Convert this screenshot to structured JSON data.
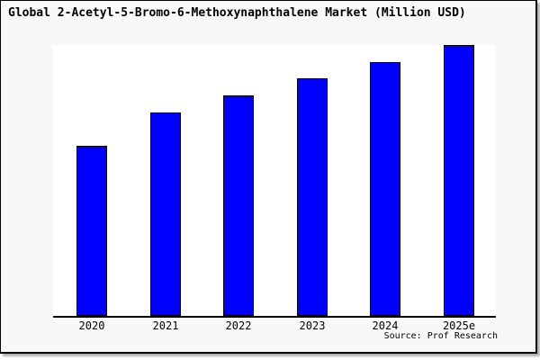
{
  "source": "Source: Prof Research",
  "colors": {
    "bar_fill": "#0000ff",
    "bar_border": "#000000",
    "frame_background": "#f8f8f8",
    "plot_background": "#ffffff",
    "axis": "#000000",
    "text": "#000000",
    "shadow": "#b3b3b3"
  },
  "chart_data": {
    "type": "bar",
    "title": "Global 2-Acetyl-5-Bromo-6-Methoxynaphthalene Market (Million USD)",
    "categories": [
      "2020",
      "2021",
      "2022",
      "2023",
      "2024",
      "2025e"
    ],
    "values": [
      62.8,
      75.1,
      81.4,
      87.7,
      93.7,
      100
    ],
    "value_note": "No numeric y-axis shown in image; values estimated as percent of the tallest (2025e) bar height",
    "xlabel": "",
    "ylabel": "",
    "ylim": [
      0,
      100
    ],
    "grid": false,
    "legend": "none",
    "y_axis_labels_visible": false,
    "source_note": "Source: Prof Research"
  }
}
